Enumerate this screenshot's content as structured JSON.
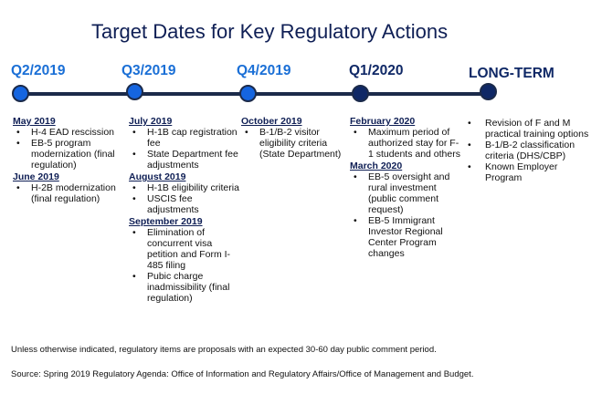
{
  "title": "Target Dates for Key Regulatory Actions",
  "colors": {
    "title": "#0f1f55",
    "line": "#1b2a4a",
    "dot_light": "#1565e0",
    "dot_dark": "#0f2866",
    "head_blue": "#1a6fd6",
    "head_dark": "#0f2866"
  },
  "columns": [
    {
      "label": "Q2/2019",
      "groups": [
        {
          "title": "May 2019",
          "items": [
            "H-4 EAD rescission",
            "EB-5 program modernization (final regulation)"
          ]
        },
        {
          "title": "June 2019",
          "items": [
            "H-2B modernization (final regulation)"
          ]
        }
      ]
    },
    {
      "label": "Q3/2019",
      "groups": [
        {
          "title": "July 2019",
          "items": [
            "H-1B cap registration fee",
            "State Department fee adjustments"
          ]
        },
        {
          "title": "August 2019",
          "items": [
            "H-1B eligibility criteria",
            "USCIS fee adjustments"
          ]
        },
        {
          "title": "September 2019",
          "items": [
            "Elimination of concurrent visa petition and Form I-485 filing",
            "Pubic charge inadmissibility (final regulation)"
          ]
        }
      ]
    },
    {
      "label": "Q4/2019",
      "groups": [
        {
          "title": "October 2019",
          "items": [
            "B-1/B-2 visitor eligibility criteria (State Department)"
          ]
        }
      ]
    },
    {
      "label": "Q1/2020",
      "groups": [
        {
          "title": "February 2020",
          "items": [
            "Maximum period of authorized stay for F-1 students and others"
          ]
        },
        {
          "title": "March 2020",
          "items": [
            "EB-5 oversight and rural investment (public comment request)",
            "EB-5 Immigrant Investor Regional Center Program changes"
          ]
        }
      ]
    },
    {
      "label": "LONG-TERM",
      "groups": [
        {
          "title": "",
          "items": [
            "Revision of F and M practical training options",
            "B-1/B-2 classification criteria (DHS/CBP)",
            "Known Employer Program"
          ]
        }
      ]
    }
  ],
  "footnote": "Unless otherwise indicated, regulatory items are proposals with an expected 30-60 day public comment period.",
  "source": "Source: Spring 2019 Regulatory Agenda: Office of Information and Regulatory Affairs/Office of Management and Budget."
}
